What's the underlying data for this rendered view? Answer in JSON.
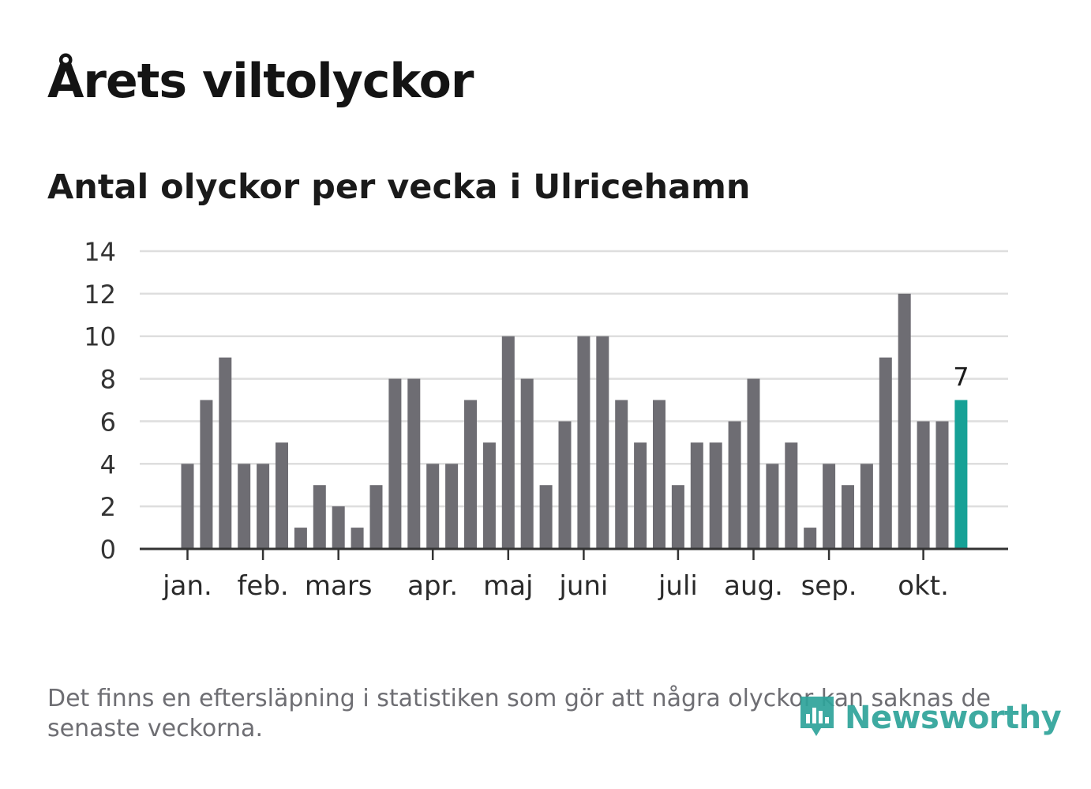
{
  "title": "Årets viltolyckor",
  "subtitle": "Antal olyckor per vecka i Ulricehamn",
  "footnote": "Det finns en eftersläpning i statistiken som gör att några olyckor kan saknas de senaste veckorna.",
  "logo": {
    "text": "Newsworthy",
    "icon": "bar-chart-speech-icon"
  },
  "colors": {
    "bar": "#6e6d73",
    "highlight": "#16a196",
    "grid": "#dedede",
    "axis": "#333333",
    "brand": "#2ea39a"
  },
  "chart_data": {
    "type": "bar",
    "title": "Antal olyckor per vecka i Ulricehamn",
    "xlabel": "",
    "ylabel": "",
    "ylim": [
      0,
      14
    ],
    "yticks": [
      0,
      2,
      4,
      6,
      8,
      10,
      12,
      14
    ],
    "grid": true,
    "weeks": [
      1,
      2,
      3,
      4,
      5,
      6,
      7,
      8,
      9,
      10,
      11,
      12,
      13,
      14,
      15,
      16,
      17,
      18,
      19,
      20,
      21,
      22,
      23,
      24,
      25,
      26,
      27,
      28,
      29,
      30,
      31,
      32,
      33,
      34,
      35,
      36,
      37,
      38,
      39,
      40,
      41,
      42
    ],
    "values": [
      4,
      7,
      9,
      4,
      4,
      5,
      1,
      3,
      2,
      1,
      3,
      8,
      8,
      4,
      4,
      7,
      5,
      10,
      8,
      3,
      6,
      10,
      10,
      7,
      5,
      7,
      3,
      5,
      5,
      6,
      8,
      4,
      5,
      1,
      4,
      3,
      4,
      9,
      12,
      6,
      6,
      7
    ],
    "highlight_last": true,
    "last_value_label": "7",
    "months": [
      {
        "label": "jan.",
        "week": 1
      },
      {
        "label": "feb.",
        "week": 5
      },
      {
        "label": "mars",
        "week": 9
      },
      {
        "label": "apr.",
        "week": 14
      },
      {
        "label": "maj",
        "week": 18
      },
      {
        "label": "juni",
        "week": 22
      },
      {
        "label": "juli",
        "week": 27
      },
      {
        "label": "aug.",
        "week": 31
      },
      {
        "label": "sep.",
        "week": 35
      },
      {
        "label": "okt.",
        "week": 40
      }
    ]
  }
}
